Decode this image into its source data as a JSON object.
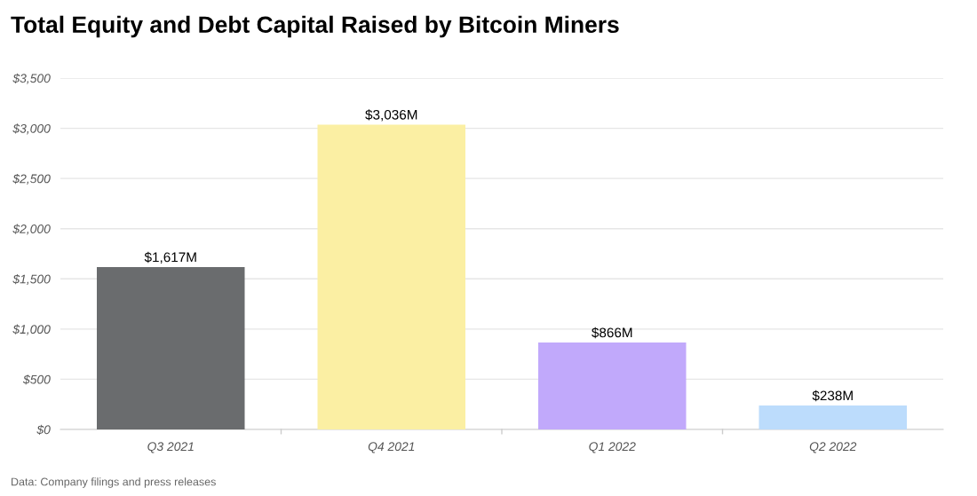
{
  "chart_data": {
    "type": "bar",
    "title": "Total Equity and Debt Capital Raised by Bitcoin Miners",
    "categories": [
      "Q3 2021",
      "Q4 2021",
      "Q1 2022",
      "Q2 2022"
    ],
    "values": [
      1617,
      3036,
      866,
      238
    ],
    "colors": [
      "#6a6c6e",
      "#fbefa3",
      "#c1a9fb",
      "#bcdcfc"
    ],
    "value_labels": [
      "$1,617M",
      "$3,036M",
      "$866M",
      "$238M"
    ],
    "ylim": [
      0,
      3500
    ],
    "yticks": [
      {
        "value": 0,
        "label": "$0"
      },
      {
        "value": 500,
        "label": "$500"
      },
      {
        "value": 1000,
        "label": "$1,000"
      },
      {
        "value": 1500,
        "label": "$1,500"
      },
      {
        "value": 2000,
        "label": "$2,000"
      },
      {
        "value": 2500,
        "label": "$2,500"
      },
      {
        "value": 3000,
        "label": "$3,000"
      },
      {
        "value": 3500,
        "label": "$3,500"
      }
    ],
    "grid": "y",
    "annotations": [
      "Data: Company filings and press releases"
    ]
  }
}
